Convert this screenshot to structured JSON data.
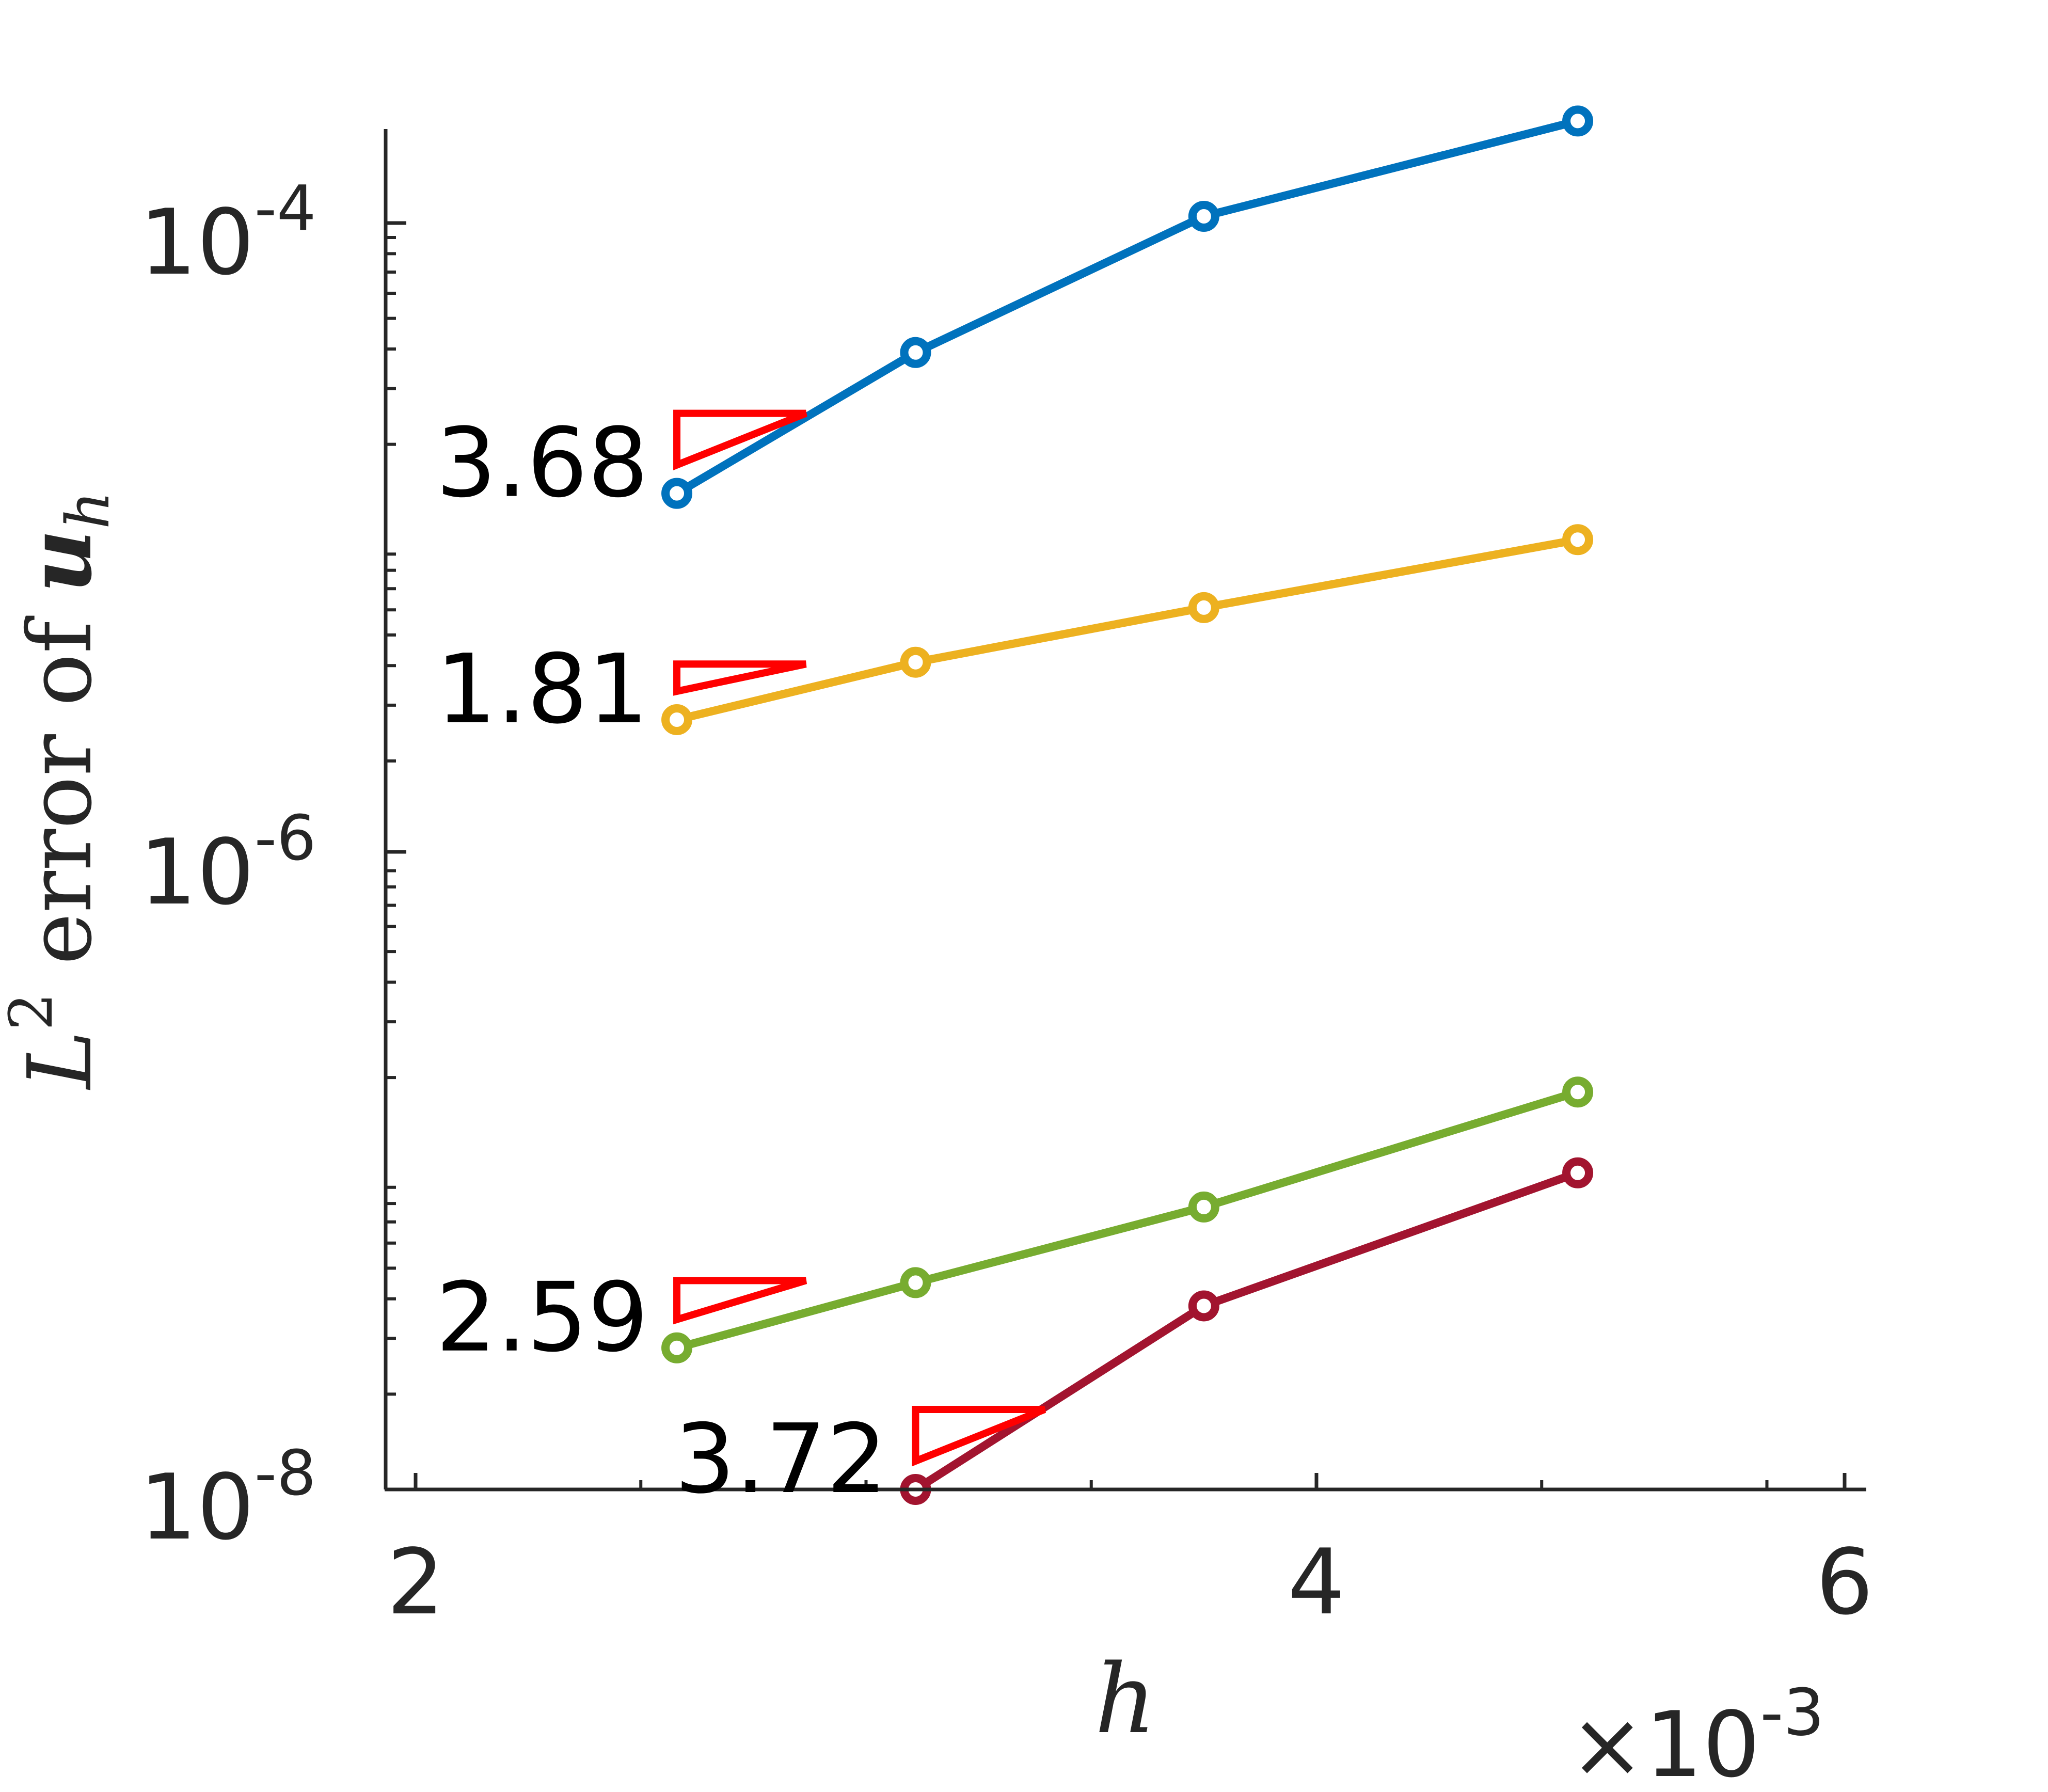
{
  "chart_data": {
    "type": "line",
    "xscale": "linear",
    "yscale": "log",
    "xlim": [
      0.00197,
      0.00605
    ],
    "ylim": [
      1e-08,
      0.0002
    ],
    "grid": false,
    "xlabel_var": "h",
    "xlabel_text": "",
    "ylabel_parts": {
      "L": "L",
      "sup": "2",
      "middle": " error of ",
      "u": "u",
      "sub": "h"
    },
    "x_multiplier": {
      "times": "×",
      "base": "10",
      "exp": "-3"
    },
    "x_ticks": [
      {
        "value": 0.002,
        "label": "2"
      },
      {
        "value": 0.004,
        "label": "4"
      },
      {
        "value": 0.006,
        "label": "6"
      }
    ],
    "y_ticks": [
      {
        "value": 1e-08,
        "base": "10",
        "exp": "-8"
      },
      {
        "value": 1e-06,
        "base": "10",
        "exp": "-6"
      },
      {
        "value": 0.0001,
        "base": "10",
        "exp": "-4"
      }
    ],
    "series": [
      {
        "color": "#0072BD",
        "x": [
          0.00258,
          0.00311,
          0.00375,
          0.00458
        ],
        "y": [
          1.4e-05,
          3.9e-05,
          0.000105,
          0.00021
        ]
      },
      {
        "color": "#EDB120",
        "x": [
          0.00258,
          0.00311,
          0.00375,
          0.00458
        ],
        "y": [
          2.7e-06,
          4.1e-06,
          6.1e-06,
          1e-05
        ]
      },
      {
        "color": "#77AC30",
        "x": [
          0.00258,
          0.00311,
          0.00375,
          0.00458
        ],
        "y": [
          2.8e-08,
          4.5e-08,
          7.8e-08,
          1.8e-07
        ]
      },
      {
        "color": "#A2142F",
        "x": [
          0.00311,
          0.00375,
          0.00458
        ],
        "y": [
          1e-08,
          3.8e-08,
          1e-07
        ]
      }
    ],
    "annotations": [
      {
        "text": "3.68",
        "series": 0
      },
      {
        "text": "1.81",
        "series": 1
      },
      {
        "text": "2.59",
        "series": 2
      },
      {
        "text": "3.72",
        "series": 3
      }
    ],
    "annotation_color": "#FF0000"
  }
}
